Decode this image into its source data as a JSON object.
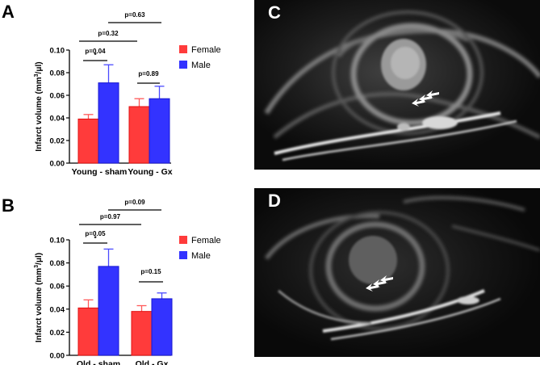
{
  "panels": {
    "A": "A",
    "B": "B",
    "C": "C",
    "D": "D"
  },
  "colors": {
    "female": "#ff3b3b",
    "female_err": "#ff5a5a",
    "male": "#3333ff",
    "male_err": "#4a4aff"
  },
  "chart_data": [
    {
      "panel": "A",
      "type": "bar",
      "categories": [
        "Young - sham",
        "Young - Gx"
      ],
      "series": [
        {
          "name": "Female",
          "values": [
            0.039,
            0.05
          ],
          "errors": [
            0.004,
            0.007
          ]
        },
        {
          "name": "Male",
          "values": [
            0.071,
            0.057
          ],
          "errors": [
            0.016,
            0.011
          ]
        }
      ],
      "ylabel_prefix": "Infarct volume (mm",
      "ylabel_sup": "3",
      "ylabel_suffix": "/μl)",
      "ylim": [
        0,
        0.1
      ],
      "yticks": [
        "0.00",
        "0.02",
        "0.04",
        "0.06",
        "0.08",
        "0.10"
      ],
      "legend": "right",
      "comparisons": [
        {
          "label": "p=0.04",
          "star": "*"
        },
        {
          "label": "p=0.89"
        },
        {
          "label": "p=0.32"
        },
        {
          "label": "p=0.63"
        }
      ]
    },
    {
      "panel": "B",
      "type": "bar",
      "categories": [
        "Old - sham",
        "Old - Gx"
      ],
      "series": [
        {
          "name": "Female",
          "values": [
            0.041,
            0.038
          ],
          "errors": [
            0.007,
            0.005
          ]
        },
        {
          "name": "Male",
          "values": [
            0.077,
            0.049
          ],
          "errors": [
            0.015,
            0.005
          ]
        }
      ],
      "ylabel_prefix": "Infarct volume (mm",
      "ylabel_sup": "3",
      "ylabel_suffix": "/μl)",
      "ylim": [
        0,
        0.1
      ],
      "yticks": [
        "0.00",
        "0.02",
        "0.04",
        "0.06",
        "0.08",
        "0.10"
      ],
      "legend": "right",
      "comparisons": [
        {
          "label": "p=0.05",
          "star": "*"
        },
        {
          "label": "p=0.15"
        },
        {
          "label": "p=0.97"
        },
        {
          "label": "p=0.09"
        }
      ]
    }
  ]
}
